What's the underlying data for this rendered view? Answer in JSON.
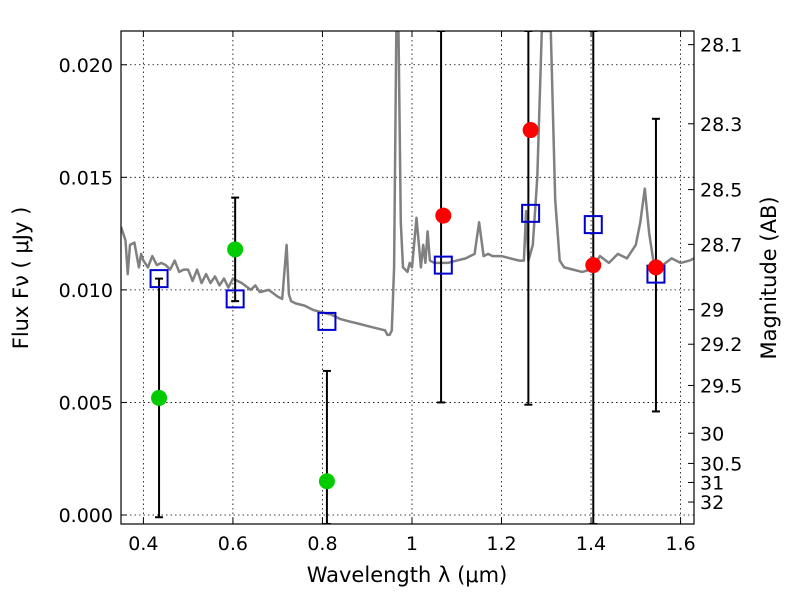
{
  "chart_data": {
    "type": "scatter",
    "xlabel": "Wavelength  λ (μm)",
    "ylabel": "Flux  Fν  ( μJy )",
    "ylabel_right": "Magnitude (AB)",
    "xlim": [
      0.35,
      1.63
    ],
    "ylim": [
      -0.0004,
      0.0215
    ],
    "grid": true,
    "x_ticks": [
      {
        "value": 0.4,
        "label": "0.4"
      },
      {
        "value": 0.6,
        "label": "0.6"
      },
      {
        "value": 0.8,
        "label": "0.8"
      },
      {
        "value": 1.0,
        "label": "1"
      },
      {
        "value": 1.2,
        "label": "1.2"
      },
      {
        "value": 1.4,
        "label": "1.4"
      },
      {
        "value": 1.6,
        "label": "1.6"
      }
    ],
    "y_ticks": [
      {
        "value": 0.0,
        "label": "0.000"
      },
      {
        "value": 0.005,
        "label": "0.005"
      },
      {
        "value": 0.01,
        "label": "0.010"
      },
      {
        "value": 0.015,
        "label": "0.015"
      },
      {
        "value": 0.02,
        "label": "0.020"
      }
    ],
    "right_ticks": [
      {
        "mag": 28.1,
        "label": "28.1"
      },
      {
        "mag": 28.3,
        "label": "28.3"
      },
      {
        "mag": 28.5,
        "label": "28.5"
      },
      {
        "mag": 28.7,
        "label": "28.7"
      },
      {
        "mag": 29.0,
        "label": "29"
      },
      {
        "mag": 29.2,
        "label": "29.2"
      },
      {
        "mag": 29.5,
        "label": "29.5"
      },
      {
        "mag": 30.0,
        "label": "30"
      },
      {
        "mag": 30.5,
        "label": "30.5"
      },
      {
        "mag": 31.0,
        "label": "31"
      },
      {
        "mag": 32.0,
        "label": "32"
      }
    ],
    "series": [
      {
        "type": "line",
        "color": "#808080",
        "x": [
          0.35,
          0.36,
          0.365,
          0.37,
          0.38,
          0.39,
          0.395,
          0.4,
          0.41,
          0.42,
          0.43,
          0.44,
          0.45,
          0.46,
          0.47,
          0.48,
          0.49,
          0.5,
          0.51,
          0.52,
          0.53,
          0.54,
          0.55,
          0.56,
          0.57,
          0.58,
          0.59,
          0.6,
          0.62,
          0.64,
          0.65,
          0.66,
          0.68,
          0.7,
          0.71,
          0.72,
          0.725,
          0.73,
          0.74,
          0.76,
          0.78,
          0.8,
          0.82,
          0.84,
          0.86,
          0.88,
          0.9,
          0.92,
          0.94,
          0.945,
          0.95,
          0.955,
          0.96,
          0.965,
          0.97,
          0.975,
          0.98,
          0.985,
          0.99,
          0.995,
          1.0,
          1.01,
          1.02,
          1.025,
          1.03,
          1.035,
          1.04,
          1.05,
          1.06,
          1.08,
          1.1,
          1.12,
          1.14,
          1.15,
          1.16,
          1.17,
          1.18,
          1.2,
          1.22,
          1.24,
          1.25,
          1.255,
          1.26,
          1.27,
          1.28,
          1.29,
          1.3,
          1.31,
          1.32,
          1.33,
          1.34,
          1.36,
          1.38,
          1.4,
          1.42,
          1.44,
          1.46,
          1.48,
          1.5,
          1.51,
          1.52,
          1.53,
          1.54,
          1.56,
          1.58,
          1.6,
          1.62,
          1.63
        ],
        "y": [
          0.0128,
          0.0122,
          0.0107,
          0.012,
          0.0121,
          0.011,
          0.0116,
          0.0113,
          0.011,
          0.0115,
          0.0111,
          0.0112,
          0.0111,
          0.0109,
          0.0113,
          0.0108,
          0.0109,
          0.0109,
          0.0104,
          0.0109,
          0.0103,
          0.0107,
          0.0103,
          0.0106,
          0.0102,
          0.0105,
          0.0101,
          0.0105,
          0.0103,
          0.01,
          0.0102,
          0.0099,
          0.01,
          0.0097,
          0.0096,
          0.012,
          0.0098,
          0.0095,
          0.0094,
          0.0093,
          0.0091,
          0.009,
          0.0089,
          0.0087,
          0.0086,
          0.0085,
          0.0084,
          0.0083,
          0.0082,
          0.008,
          0.008,
          0.0082,
          0.011,
          0.0215,
          0.0215,
          0.013,
          0.011,
          0.0109,
          0.0108,
          0.0112,
          0.011,
          0.0132,
          0.011,
          0.012,
          0.0112,
          0.0126,
          0.0113,
          0.0112,
          0.0112,
          0.0112,
          0.0113,
          0.0114,
          0.0116,
          0.013,
          0.0115,
          0.0116,
          0.0115,
          0.0115,
          0.0114,
          0.0113,
          0.0113,
          0.0135,
          0.0113,
          0.012,
          0.015,
          0.0215,
          0.0215,
          0.0215,
          0.014,
          0.0113,
          0.011,
          0.0109,
          0.0108,
          0.0109,
          0.0115,
          0.0112,
          0.0116,
          0.0114,
          0.012,
          0.013,
          0.0145,
          0.0125,
          0.0112,
          0.0111,
          0.0114,
          0.0112,
          0.0113,
          0.0114
        ]
      },
      {
        "type": "errorbar",
        "color": "#000000",
        "x": [
          0.435,
          0.605,
          0.81,
          1.065,
          1.26,
          1.405,
          1.545
        ],
        "y_low": [
          -0.0001,
          0.0095,
          -0.0004,
          0.005,
          0.0049,
          -0.0004,
          0.0046
        ],
        "y_high": [
          0.0105,
          0.0141,
          0.0064,
          0.0215,
          0.0215,
          0.0215,
          0.0176
        ]
      },
      {
        "type": "scatter",
        "marker": "open-square",
        "color": "#0000cc",
        "x": [
          0.435,
          0.605,
          0.81,
          1.07,
          1.265,
          1.405,
          1.545
        ],
        "y": [
          0.0105,
          0.0096,
          0.0086,
          0.0111,
          0.0134,
          0.0129,
          0.0107
        ]
      },
      {
        "type": "scatter",
        "marker": "circle",
        "color": "#00cc00",
        "x": [
          0.435,
          0.605,
          0.81
        ],
        "y": [
          0.0052,
          0.0118,
          0.0015
        ]
      },
      {
        "type": "scatter",
        "marker": "circle",
        "color": "#ff0000",
        "x": [
          1.07,
          1.265,
          1.405,
          1.545
        ],
        "y": [
          0.0133,
          0.0171,
          0.0111,
          0.011
        ]
      }
    ]
  }
}
